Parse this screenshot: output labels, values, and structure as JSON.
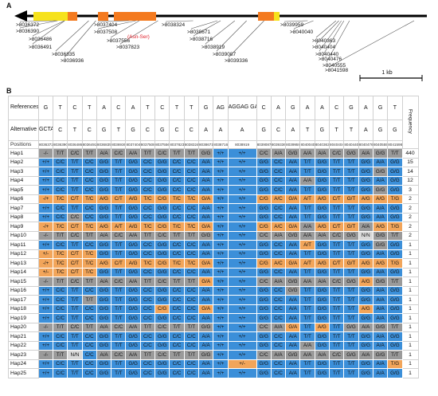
{
  "panel_a": {
    "label": "A",
    "scale_label": "1 kb",
    "snps": [
      {
        "label": ">8036372",
        "red": false
      },
      {
        "label": ">8036390",
        "red": false
      },
      {
        "label": ">8036486",
        "red": false
      },
      {
        "label": ">8036491",
        "red": false
      },
      {
        "label": ">8036835",
        "red": false
      },
      {
        "label": ">8036936",
        "red": false
      },
      {
        "label": ">8037404",
        "red": false
      },
      {
        "label": ">8037508",
        "red": false
      },
      {
        "label": "(Asn-Ser)",
        "red": true
      },
      {
        "label": ">8037556",
        "red": false
      },
      {
        "label": ">8037823",
        "red": false
      },
      {
        "label": ">8038324",
        "red": false
      },
      {
        "label": ">8038671",
        "red": false
      },
      {
        "label": ">8038716",
        "red": false
      },
      {
        "label": ">8038919",
        "red": false
      },
      {
        "label": ">8039087",
        "red": false
      },
      {
        "label": ">8039336",
        "red": false
      },
      {
        "label": ">8039959",
        "red": false
      },
      {
        "label": ">8040040",
        "red": false
      },
      {
        "label": ">8040363",
        "red": false
      },
      {
        "label": ">8040404",
        "red": false
      },
      {
        "label": ">8040440",
        "red": false
      },
      {
        "label": ">8040476",
        "red": false
      },
      {
        "label": ">8040555",
        "red": false
      },
      {
        "label": ">8041598",
        "red": false
      }
    ]
  },
  "panel_b": {
    "label": "B",
    "ref_label": "References allele",
    "alt_label": "Alternative allele",
    "pos_label": "Positions",
    "freq_label": "Frequency",
    "ref_alleles": [
      "G",
      "T",
      "C",
      "T",
      "A",
      "C",
      "A",
      "T",
      "C",
      "T",
      "T",
      "G",
      "AG",
      "AGGAG GACAA AACAA AACAC AT",
      "C",
      "A",
      "G",
      "A",
      "A",
      "C",
      "G",
      "A",
      "G",
      "T"
    ],
    "alt_alleles": [
      "GCTA GGCA AAGT",
      "C",
      "T",
      "C",
      "G",
      "T",
      "G",
      "C",
      "G",
      "C",
      "C",
      "A",
      "A",
      "A",
      "G",
      "C",
      "A",
      "T",
      "G",
      "T",
      "T",
      "A",
      "G",
      "G"
    ],
    "positions": [
      "8036372",
      "8036390",
      "8036486",
      "8036491",
      "8036835",
      "8036936",
      "8037404",
      "8037508",
      "8037556",
      "8037823",
      "8038324",
      "8038671",
      "8038716",
      "8038919",
      "8039087",
      "8039336",
      "8039959",
      "8040040",
      "8040363",
      "8040404",
      "8040440",
      "8040476",
      "8040555",
      "8041598"
    ],
    "haplotypes": [
      {
        "name": "Hap1",
        "freq": "440",
        "cells": [
          "-/-",
          "T/T",
          "C/C",
          "T/T",
          "A/A",
          "C/C",
          "A/A",
          "T/T",
          "C/C",
          "T/T",
          "T/T",
          "G/G",
          "+/+",
          "+/+",
          "C/C",
          "A/A",
          "G/G",
          "A/A",
          "A/A",
          "C/C",
          "G/G",
          "A/A",
          "G/G",
          "T/T"
        ]
      },
      {
        "name": "Hap2",
        "freq": "15",
        "cells": [
          "+/+",
          "C/C",
          "T/T",
          "C/C",
          "G/G",
          "T/T",
          "G/G",
          "C/C",
          "G/G",
          "C/C",
          "C/C",
          "A/A",
          "+/+",
          "+/+",
          "G/G",
          "C/C",
          "A/A",
          "T/T",
          "G/G",
          "T/T",
          "T/T",
          "G/G",
          "A/A",
          "G/G"
        ]
      },
      {
        "name": "Hap3",
        "freq": "14",
        "cells": [
          "+/+",
          "C/C",
          "T/T",
          "C/C",
          "G/G",
          "T/T",
          "G/G",
          "C/C",
          "G/G",
          "C/C",
          "C/C",
          "A/A",
          "+/+",
          "+/+",
          "G/G",
          "C/C",
          "A/A",
          "T/T",
          "G/G",
          "T/T",
          "T/T",
          "G/G",
          "G/G",
          "G/G"
        ]
      },
      {
        "name": "Hap4",
        "freq": "12",
        "cells": [
          "+/+",
          "C/C",
          "T/T",
          "C/C",
          "G/G",
          "T/T",
          "G/G",
          "C/C",
          "G/G",
          "C/C",
          "C/C",
          "A/A",
          "+/+",
          "+/+",
          "G/G",
          "C/C",
          "A/A",
          "A/A",
          "G/G",
          "T/T",
          "T/T",
          "G/G",
          "A/A",
          "G/G"
        ]
      },
      {
        "name": "Hap5",
        "freq": "3",
        "cells": [
          "+/+",
          "C/C",
          "T/T",
          "C/C",
          "G/G",
          "T/T",
          "G/G",
          "C/C",
          "G/G",
          "C/C",
          "C/C",
          "A/A",
          "+/+",
          "+/+",
          "G/G",
          "C/C",
          "A/A",
          "T/T",
          "G/G",
          "T/T",
          "T/T",
          "G/G",
          "G/G",
          "G/G"
        ]
      },
      {
        "name": "Hap6",
        "freq": "2",
        "cells": [
          "-/+",
          "T/C",
          "C/T",
          "T/C",
          "A/G",
          "C/T",
          "A/G",
          "T/C",
          "C/G",
          "T/C",
          "T/C",
          "G/A",
          "+/+",
          "+/+",
          "C/G",
          "A/C",
          "G/A",
          "A/T",
          "A/G",
          "C/T",
          "G/T",
          "A/G",
          "A/G",
          "T/G"
        ]
      },
      {
        "name": "Hap7",
        "freq": "2",
        "cells": [
          "+/+",
          "C/C",
          "T/T",
          "C/C",
          "G/G",
          "T/T",
          "G/G",
          "C/C",
          "G/G",
          "C/C",
          "C/C",
          "A/A",
          "+/+",
          "+/+",
          "G/G",
          "C/C",
          "A/A",
          "T/T",
          "G/G",
          "T/T",
          "T/T",
          "G/G",
          "A/A",
          "G/G"
        ]
      },
      {
        "name": "Hap8",
        "freq": "2",
        "cells": [
          "+/+",
          "C/C",
          "C/C",
          "C/C",
          "G/G",
          "T/T",
          "G/G",
          "C/C",
          "G/G",
          "C/C",
          "C/C",
          "A/A",
          "+/+",
          "+/+",
          "G/G",
          "C/C",
          "A/A",
          "T/T",
          "G/G",
          "T/T",
          "T/T",
          "G/G",
          "A/A",
          "G/G"
        ]
      },
      {
        "name": "Hap9",
        "freq": "2",
        "cells": [
          "-/+",
          "T/C",
          "C/T",
          "T/C",
          "A/G",
          "A/T",
          "A/G",
          "T/C",
          "C/G",
          "T/C",
          "T/C",
          "G/A",
          "+/+",
          "+/+",
          "C/G",
          "A/C",
          "G/A",
          "A/A",
          "A/G",
          "C/T",
          "G/T",
          "A/A",
          "A/G",
          "T/G"
        ]
      },
      {
        "name": "Hap10",
        "freq": "2",
        "cells": [
          "-/-",
          "T/T",
          "C/C",
          "T/T",
          "A/A",
          "C/C",
          "A/A",
          "T/T",
          "C/C",
          "T/T",
          "T/T",
          "G/G",
          "+/+",
          "+/+",
          "C/C",
          "A/A",
          "G/G",
          "A/A",
          "A/A",
          "C/C",
          "G/G",
          "N/N",
          "G/G",
          "T/T"
        ]
      },
      {
        "name": "Hap11",
        "freq": "1",
        "cells": [
          "+/+",
          "C/C",
          "T/T",
          "C/C",
          "G/G",
          "T/T",
          "G/G",
          "C/C",
          "G/G",
          "C/C",
          "C/C",
          "A/A",
          "+/+",
          "+/+",
          "G/G",
          "C/C",
          "A/A",
          "A/T",
          "G/G",
          "T/T",
          "T/T",
          "G/G",
          "G/G",
          "G/G"
        ]
      },
      {
        "name": "Hap12",
        "freq": "1",
        "cells": [
          "+/-",
          "T/C",
          "C/T",
          "T/C",
          "G/G",
          "T/T",
          "G/G",
          "C/C",
          "G/G",
          "C/C",
          "C/C",
          "A/A",
          "+/+",
          "+/+",
          "G/G",
          "C/C",
          "A/A",
          "T/T",
          "G/G",
          "T/T",
          "T/T",
          "G/G",
          "A/A",
          "G/G"
        ]
      },
      {
        "name": "Hap13",
        "freq": "1",
        "cells": [
          "-/+",
          "T/C",
          "C/T",
          "T/C",
          "A/G",
          "C/T",
          "A/G",
          "T/C",
          "C/G",
          "T/C",
          "T/C",
          "G/A",
          "+/+",
          "+/+",
          "C/G",
          "A/C",
          "G/A",
          "A/T",
          "A/G",
          "C/T",
          "G/T",
          "A/G",
          "A/G",
          "T/G"
        ]
      },
      {
        "name": "Hap14",
        "freq": "1",
        "cells": [
          "+/-",
          "T/C",
          "C/T",
          "T/C",
          "G/G",
          "T/T",
          "G/G",
          "C/C",
          "G/G",
          "C/C",
          "C/C",
          "A/A",
          "+/+",
          "+/+",
          "G/G",
          "C/C",
          "A/A",
          "T/T",
          "G/G",
          "T/T",
          "T/T",
          "G/G",
          "A/A",
          "G/G"
        ]
      },
      {
        "name": "Hap15",
        "freq": "1",
        "cells": [
          "-/-",
          "T/T",
          "C/C",
          "T/T",
          "A/A",
          "C/C",
          "A/A",
          "T/T",
          "C/C",
          "T/T",
          "T/T",
          "G/A",
          "+/+",
          "+/+",
          "C/C",
          "A/A",
          "G/G",
          "A/A",
          "A/A",
          "C/C",
          "G/G",
          "A/G",
          "G/G",
          "T/T"
        ]
      },
      {
        "name": "Hap16",
        "freq": "1",
        "cells": [
          "+/+",
          "C/C",
          "T/T",
          "C/C",
          "G/G",
          "T/T",
          "G/G",
          "C/C",
          "G/G",
          "C/C",
          "C/C",
          "A/A",
          "+/+",
          "+/+",
          "G/G",
          "C/C",
          "G/G",
          "T/T",
          "G/G",
          "T/T",
          "T/T",
          "G/G",
          "A/A",
          "G/G"
        ]
      },
      {
        "name": "Hap17",
        "freq": "1",
        "cells": [
          "+/+",
          "C/C",
          "T/T",
          "T/T",
          "G/G",
          "T/T",
          "G/G",
          "C/C",
          "G/G",
          "C/C",
          "C/C",
          "A/A",
          "+/+",
          "+/+",
          "G/G",
          "C/C",
          "A/A",
          "T/T",
          "G/G",
          "T/T",
          "T/T",
          "G/G",
          "A/A",
          "G/G"
        ]
      },
      {
        "name": "Hap18",
        "freq": "1",
        "cells": [
          "+/+",
          "C/C",
          "T/T",
          "C/C",
          "G/G",
          "T/T",
          "G/G",
          "C/C",
          "C/G",
          "C/C",
          "C/C",
          "G/A",
          "+/+",
          "+/+",
          "G/G",
          "C/C",
          "A/A",
          "T/T",
          "G/G",
          "T/T",
          "T/T",
          "A/G",
          "A/A",
          "G/G"
        ]
      },
      {
        "name": "Hap19",
        "freq": "1",
        "cells": [
          "+/+",
          "C/C",
          "T/T",
          "C/C",
          "G/G",
          "T/T",
          "G/G",
          "C/C",
          "G/G",
          "C/C",
          "C/C",
          "A/A",
          "+/+",
          "+/+",
          "G/G",
          "C/C",
          "A/A",
          "T/T",
          "G/G",
          "T/T",
          "T/T",
          "G/G",
          "A/A",
          "G/G"
        ]
      },
      {
        "name": "Hap20",
        "freq": "1",
        "cells": [
          "-/-",
          "T/T",
          "C/C",
          "T/T",
          "A/A",
          "C/C",
          "A/A",
          "T/T",
          "C/C",
          "T/T",
          "T/T",
          "G/G",
          "+/+",
          "+/+",
          "C/C",
          "A/A",
          "G/A",
          "T/T",
          "A/G",
          "T/T",
          "G/G",
          "A/A",
          "G/G",
          "T/T"
        ]
      },
      {
        "name": "Hap21",
        "freq": "1",
        "cells": [
          "+/+",
          "C/C",
          "T/T",
          "C/C",
          "G/G",
          "T/T",
          "G/G",
          "C/C",
          "G/G",
          "C/C",
          "C/C",
          "A/A",
          "+/+",
          "+/+",
          "G/G",
          "C/C",
          "A/A",
          "T/T",
          "G/G",
          "T/T",
          "T/T",
          "G/G",
          "A/A",
          "G/G"
        ]
      },
      {
        "name": "Hap22",
        "freq": "1",
        "cells": [
          "+/+",
          "C/C",
          "T/T",
          "C/C",
          "G/G",
          "T/T",
          "G/G",
          "C/C",
          "G/G",
          "C/C",
          "C/C",
          "A/A",
          "+/+",
          "+/+",
          "G/G",
          "C/C",
          "A/A",
          "A/A",
          "G/G",
          "T/T",
          "T/T",
          "G/G",
          "A/A",
          "G/G"
        ]
      },
      {
        "name": "Hap23",
        "freq": "1",
        "cells": [
          "-/-",
          "T/T",
          "N/N",
          "C/C",
          "A/A",
          "C/C",
          "A/A",
          "T/T",
          "C/C",
          "T/T",
          "T/T",
          "G/G",
          "+/+",
          "+/+",
          "C/C",
          "A/A",
          "G/G",
          "A/A",
          "A/A",
          "C/C",
          "G/G",
          "A/A",
          "G/G",
          "T/T"
        ]
      },
      {
        "name": "Hap24",
        "freq": "1",
        "cells": [
          "+/+",
          "C/C",
          "T/T",
          "C/C",
          "G/G",
          "T/T",
          "G/G",
          "C/C",
          "G/G",
          "C/C",
          "C/C",
          "A/A",
          "+/+",
          "+/-",
          "G/G",
          "C/C",
          "A/A",
          "T/T",
          "G/G",
          "T/T",
          "T/T",
          "G/G",
          "A/A",
          "T/G"
        ]
      },
      {
        "name": "Hap25",
        "freq": "1",
        "cells": [
          "+/+",
          "C/C",
          "T/T",
          "C/C",
          "G/G",
          "T/T",
          "G/G",
          "C/C",
          "G/G",
          "C/C",
          "C/C",
          "A/A",
          "+/+",
          "+/+",
          "G/G",
          "C/C",
          "A/A",
          "T/T",
          "G/G",
          "T/T",
          "T/T",
          "G/G",
          "A/A",
          "G/G"
        ]
      }
    ]
  },
  "colors": {
    "ref_homozygous": "#9a9a9a",
    "alt_homozygous": "#3b8fd9",
    "heterozygous": "#f2a55a",
    "missing": "#d9d9d9",
    "exon": "#f47a1f",
    "utr": "#f6e21c",
    "minor_green": "#9acd5a",
    "minor_yellow": "#e8e84a",
    "minor_purple": "#7a6cc9",
    "minor_pink": "#e98bb0"
  }
}
